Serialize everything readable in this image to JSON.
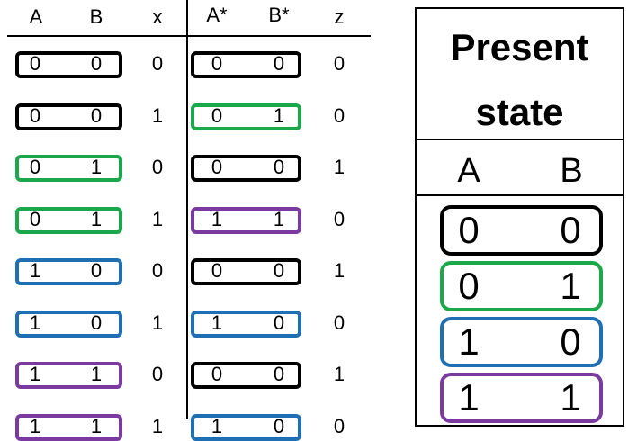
{
  "colors": {
    "black": "#000000",
    "green": "#1aa84a",
    "blue": "#1f6fb5",
    "purple": "#7a3aa0"
  },
  "left_table": {
    "headers": [
      "A",
      "B",
      "x",
      "A*",
      "B*",
      "z"
    ],
    "rows": [
      {
        "A": "0",
        "B": "0",
        "x": "0",
        "An": "0",
        "Bn": "0",
        "z": "0",
        "ps_color": "black",
        "ns_color": "black"
      },
      {
        "A": "0",
        "B": "0",
        "x": "1",
        "An": "0",
        "Bn": "1",
        "z": "0",
        "ps_color": "black",
        "ns_color": "green"
      },
      {
        "A": "0",
        "B": "1",
        "x": "0",
        "An": "0",
        "Bn": "0",
        "z": "1",
        "ps_color": "green",
        "ns_color": "black"
      },
      {
        "A": "0",
        "B": "1",
        "x": "1",
        "An": "1",
        "Bn": "1",
        "z": "0",
        "ps_color": "green",
        "ns_color": "purple"
      },
      {
        "A": "1",
        "B": "0",
        "x": "0",
        "An": "0",
        "Bn": "0",
        "z": "1",
        "ps_color": "blue",
        "ns_color": "black"
      },
      {
        "A": "1",
        "B": "0",
        "x": "1",
        "An": "1",
        "Bn": "0",
        "z": "0",
        "ps_color": "blue",
        "ns_color": "blue"
      },
      {
        "A": "1",
        "B": "1",
        "x": "0",
        "An": "0",
        "Bn": "0",
        "z": "1",
        "ps_color": "purple",
        "ns_color": "black"
      },
      {
        "A": "1",
        "B": "1",
        "x": "1",
        "An": "1",
        "Bn": "0",
        "z": "0",
        "ps_color": "purple",
        "ns_color": "blue"
      }
    ]
  },
  "right_table": {
    "title_line1": "Present",
    "title_line2": "state",
    "head_a": "A",
    "head_b": "B",
    "rows": [
      {
        "A": "0",
        "B": "0",
        "color": "black"
      },
      {
        "A": "0",
        "B": "1",
        "color": "green"
      },
      {
        "A": "1",
        "B": "0",
        "color": "blue"
      },
      {
        "A": "1",
        "B": "1",
        "color": "purple"
      }
    ]
  }
}
